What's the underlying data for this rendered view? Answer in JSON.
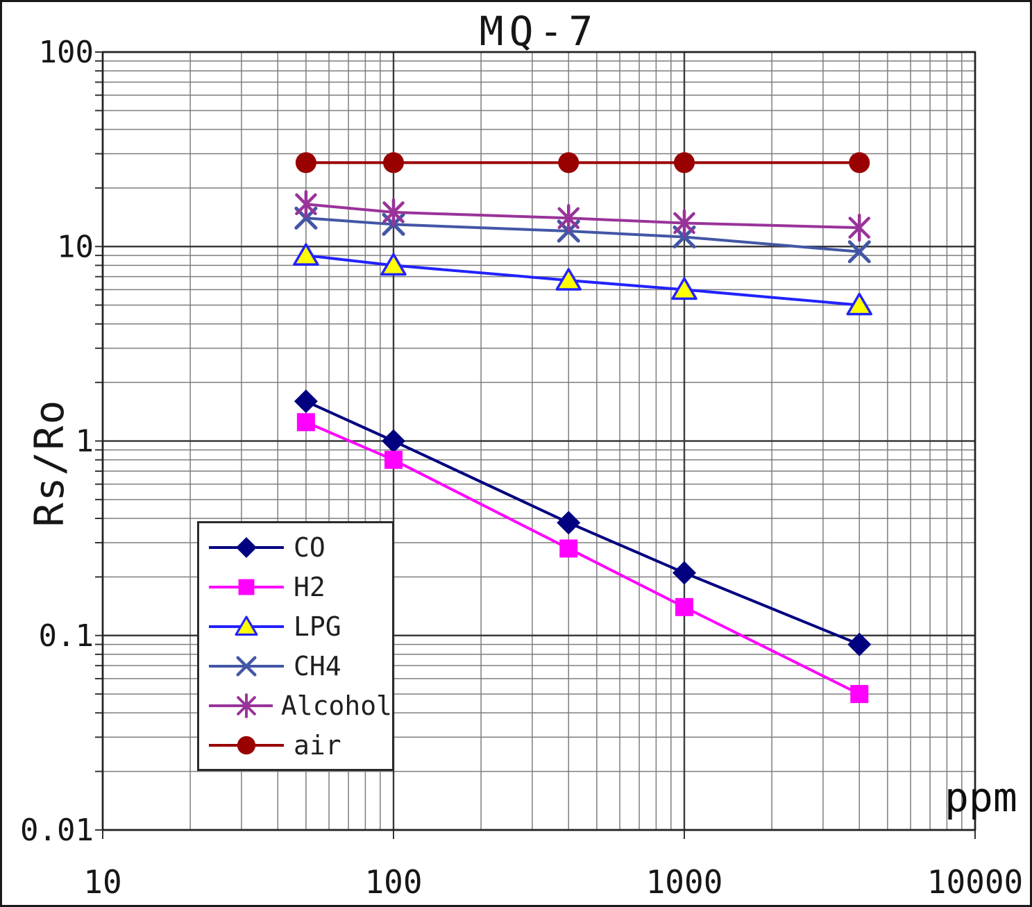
{
  "page": {
    "title": "MQ-7"
  },
  "chart_data": {
    "type": "line",
    "title": "MQ-7",
    "xlabel": "ppm",
    "ylabel": "Rs/Ro",
    "x_scale": "log",
    "y_scale": "log",
    "xlim": [
      10,
      10000
    ],
    "ylim": [
      0.01,
      100
    ],
    "grid": true,
    "legend_position": "inside-lower-left",
    "x_ticks": [
      {
        "value": 10,
        "label": "10"
      },
      {
        "value": 100,
        "label": "100"
      },
      {
        "value": 1000,
        "label": "1000"
      },
      {
        "value": 10000,
        "label": "10000"
      }
    ],
    "y_ticks": [
      {
        "value": 100,
        "label": "100"
      },
      {
        "value": 10,
        "label": "10"
      },
      {
        "value": 1,
        "label": "1"
      },
      {
        "value": 0.1,
        "label": "0.1"
      },
      {
        "value": 0.01,
        "label": "0.01"
      }
    ],
    "x": [
      50,
      100,
      400,
      1000,
      4000
    ],
    "series": [
      {
        "name": "CO",
        "color": "#000080",
        "marker": "diamond",
        "values": [
          1.6,
          1.0,
          0.38,
          0.21,
          0.09
        ]
      },
      {
        "name": "H2",
        "color": "#FF00FF",
        "marker": "square",
        "values": [
          1.25,
          0.8,
          0.28,
          0.14,
          0.05
        ]
      },
      {
        "name": "LPG",
        "color": "#2222FF",
        "marker": "triangle",
        "marker_fill": "#FFFF00",
        "values": [
          9.0,
          8.0,
          6.7,
          6.0,
          5.0
        ]
      },
      {
        "name": "CH4",
        "color": "#4356A5",
        "marker": "x",
        "values": [
          14.0,
          13.0,
          12.0,
          11.2,
          9.4
        ]
      },
      {
        "name": "Alcohol",
        "color": "#993399",
        "marker": "asterisk",
        "values": [
          16.5,
          15.0,
          14.0,
          13.2,
          12.5
        ]
      },
      {
        "name": "air",
        "color": "#990000",
        "marker": "circle",
        "values": [
          27,
          27,
          27,
          27,
          27
        ]
      }
    ],
    "grid_colors": {
      "major": "#3a3a3a",
      "minor": "#7d7d7d",
      "border": "#222222"
    }
  }
}
